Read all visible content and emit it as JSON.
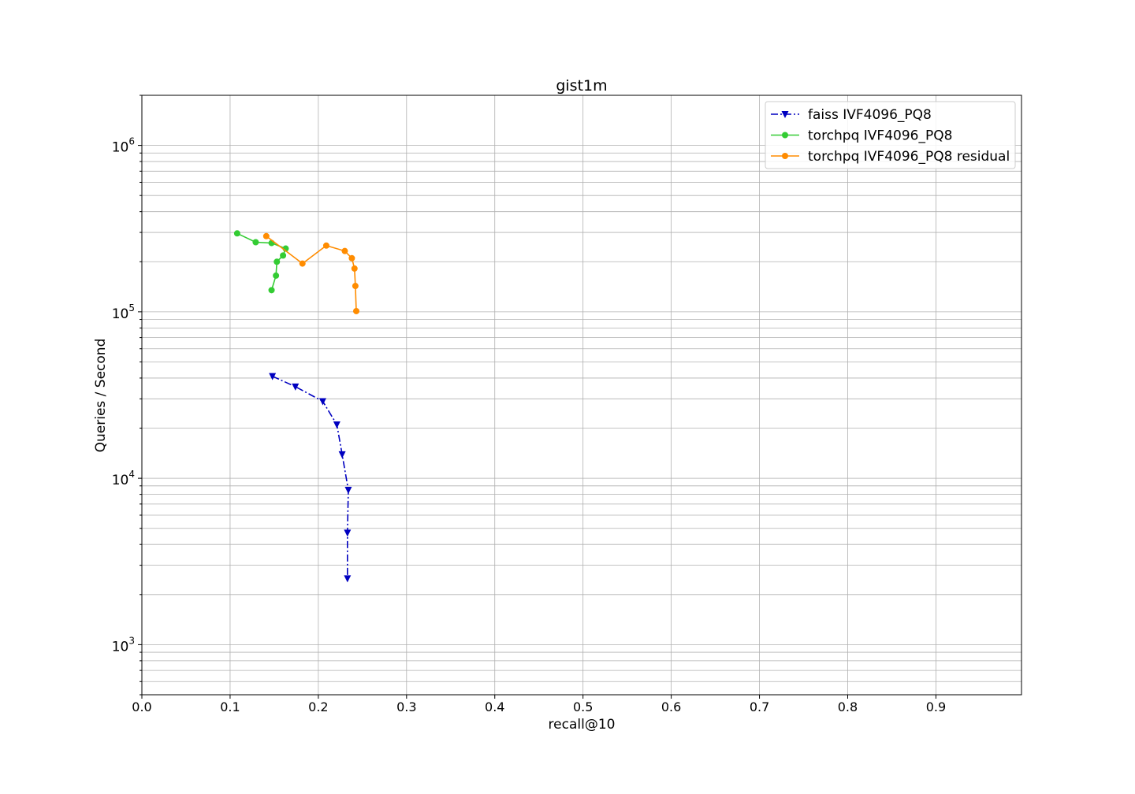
{
  "chart_data": {
    "type": "line",
    "title": "gist1m",
    "xlabel": "recall@10",
    "ylabel": "Queries / Second",
    "xlim": [
      0.0,
      0.997
    ],
    "ylim": [
      500,
      2000000
    ],
    "yscale": "log",
    "grid": true,
    "legend_position": "top-right",
    "x_ticks": [
      "0.0",
      "0.1",
      "0.2",
      "0.3",
      "0.4",
      "0.5",
      "0.6",
      "0.7",
      "0.8",
      "0.9"
    ],
    "x_tick_values": [
      0.0,
      0.1,
      0.2,
      0.3,
      0.4,
      0.5,
      0.6,
      0.7,
      0.8,
      0.9
    ],
    "y_ticks": [
      {
        "value": 1000,
        "base": "10",
        "exp": "3"
      },
      {
        "value": 10000,
        "base": "10",
        "exp": "4"
      },
      {
        "value": 100000,
        "base": "10",
        "exp": "5"
      },
      {
        "value": 1000000,
        "base": "10",
        "exp": "6"
      }
    ],
    "series": [
      {
        "name": "faiss IVF4096_PQ8",
        "color": "#0000c0",
        "marker": "triangle-down",
        "linestyle": "dashdot",
        "x": [
          0.148,
          0.174,
          0.205,
          0.221,
          0.227,
          0.234,
          0.233,
          0.233
        ],
        "y": [
          41000,
          35500,
          29000,
          21000,
          13900,
          8500,
          4700,
          2500
        ]
      },
      {
        "name": "torchpq IVF4096_PQ8",
        "color": "#33cc33",
        "marker": "circle",
        "linestyle": "solid",
        "x": [
          0.108,
          0.129,
          0.147,
          0.163,
          0.16,
          0.153,
          0.152,
          0.147
        ],
        "y": [
          296000,
          262000,
          259000,
          240000,
          218000,
          200000,
          165000,
          135000
        ]
      },
      {
        "name": "torchpq IVF4096_PQ8 residual",
        "color": "#ff8c00",
        "marker": "circle",
        "linestyle": "solid",
        "x": [
          0.141,
          0.182,
          0.209,
          0.23,
          0.238,
          0.241,
          0.242,
          0.243
        ],
        "y": [
          285000,
          195000,
          250000,
          232000,
          210000,
          182000,
          143000,
          101000
        ]
      }
    ]
  }
}
